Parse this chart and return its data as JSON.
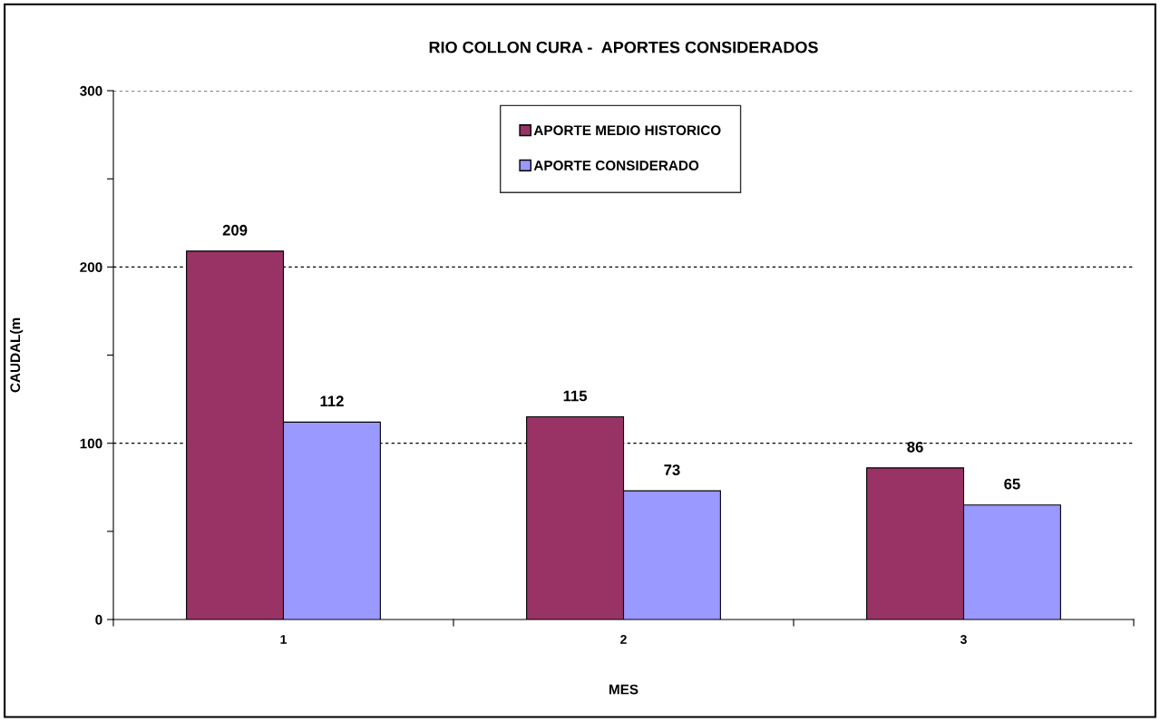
{
  "chart_data": {
    "type": "bar",
    "title": "RIO COLLON CURA -  APORTES CONSIDERADOS",
    "xlabel": "MES",
    "ylabel": "CAUDAL(m",
    "categories": [
      "1",
      "2",
      "3"
    ],
    "series": [
      {
        "name": "APORTE MEDIO HISTORICO",
        "color": "#993366",
        "values": [
          209,
          115,
          86
        ]
      },
      {
        "name": "APORTE CONSIDERADO",
        "color": "#9999ff",
        "values": [
          112,
          73,
          65
        ]
      }
    ],
    "ylim": [
      0,
      300
    ],
    "yticks": [
      0,
      {
        "value": 50,
        "label": null
      },
      100,
      {
        "value": 150,
        "label": null
      },
      200,
      {
        "value": 250,
        "label": null
      },
      300
    ],
    "grid": "y",
    "legend": "top",
    "data_labels": true
  }
}
